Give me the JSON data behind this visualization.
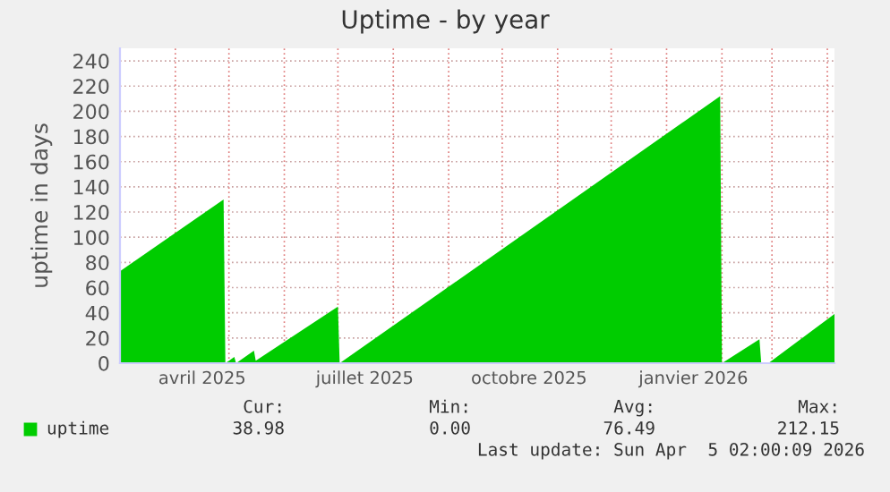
{
  "chart_data": {
    "type": "area",
    "title": "Uptime - by year",
    "ylabel": "uptime in days",
    "x": [
      "2025-03-01",
      "2025-04-28",
      "2025-04-29",
      "2025-05-04",
      "2025-05-05",
      "2025-05-15",
      "2025-05-16",
      "2025-07-01",
      "2025-07-02",
      "2026-01-31",
      "2026-02-01",
      "2026-02-22",
      "2026-02-23",
      "2026-02-27",
      "2026-04-05"
    ],
    "series": [
      {
        "name": "uptime",
        "color": "#00cc00",
        "values": [
          73,
          130,
          0,
          5,
          0,
          10,
          2,
          45,
          0,
          212,
          0,
          19,
          0,
          0,
          39
        ]
      }
    ],
    "xlim": [
      "2025-03-01",
      "2026-04-05"
    ],
    "xticks": [
      {
        "value": "2025-04-01",
        "label": null
      },
      {
        "value": "2025-05-01",
        "label": null
      },
      {
        "value": "2025-06-01",
        "label": null
      },
      {
        "value": "2025-07-01",
        "label": null
      },
      {
        "value": "2025-08-01",
        "label": null
      },
      {
        "value": "2025-09-01",
        "label": null
      },
      {
        "value": "2025-10-01",
        "label": null
      },
      {
        "value": "2025-11-01",
        "label": null
      },
      {
        "value": "2025-12-01",
        "label": null
      },
      {
        "value": "2026-01-01",
        "label": null
      },
      {
        "value": "2026-02-01",
        "label": null
      },
      {
        "value": "2026-03-01",
        "label": null
      },
      {
        "value": "2026-04-01",
        "label": null
      },
      {
        "value": "2025-04-16",
        "label": "avril 2025"
      },
      {
        "value": "2025-07-16",
        "label": "juillet 2025"
      },
      {
        "value": "2025-10-16",
        "label": "octobre 2025"
      },
      {
        "value": "2026-01-16",
        "label": "janvier 2026"
      }
    ],
    "ylim": [
      0,
      250
    ],
    "yticks": [
      0,
      20,
      40,
      60,
      80,
      100,
      120,
      140,
      160,
      180,
      200,
      220,
      240
    ],
    "grid": true,
    "legend": "bottom left",
    "annotations": [
      "Cur:",
      "Min:",
      "Avg:",
      "Max:",
      "38.98",
      "0.00",
      "76.49",
      "212.15",
      "Last update: Sun Apr  5 02:00:09 2026"
    ]
  }
}
